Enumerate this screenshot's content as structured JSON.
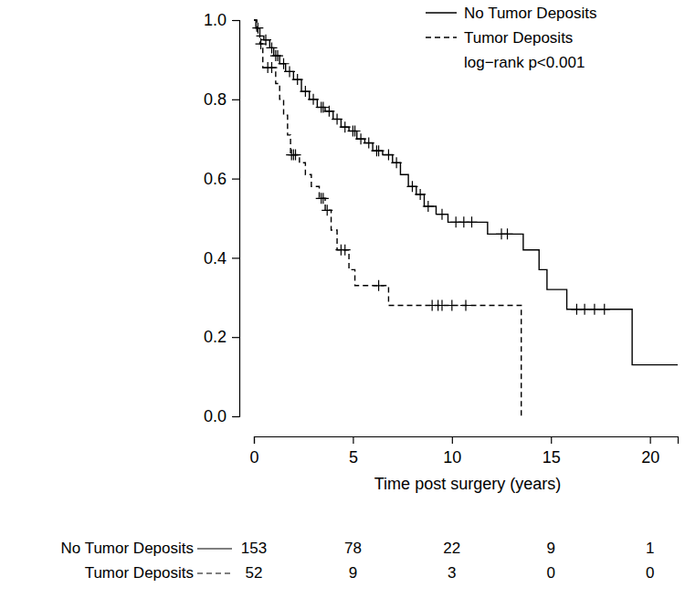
{
  "chart_data": {
    "type": "step",
    "xlabel": "Time post surgery (years)",
    "annotation": "log−rank p<0.001",
    "legend": "top-right",
    "xlim": [
      0,
      21.4
    ],
    "xticks": [
      0,
      5,
      10,
      15,
      20
    ],
    "ylim": [
      0,
      1
    ],
    "yticks": [
      {
        "value": 0,
        "label": "0.0"
      },
      {
        "value": 0.2,
        "label": "0.2"
      },
      {
        "value": 0.4,
        "label": "0.4"
      },
      {
        "value": 0.6,
        "label": "0.6"
      },
      {
        "value": 0.8,
        "label": "0.8"
      },
      {
        "value": 1,
        "label": "1.0"
      }
    ],
    "series": [
      {
        "name": "No Tumor Deposits",
        "color": "#000000",
        "line_style": "solid",
        "marker": "plus",
        "x": [
          0,
          0.1,
          0.3,
          0.5,
          0.8,
          1.0,
          1.3,
          1.6,
          2.0,
          2.4,
          2.8,
          3.2,
          3.6,
          4.0,
          4.4,
          4.8,
          5.2,
          5.6,
          6.0,
          6.5,
          7.0,
          7.4,
          7.8,
          8.2,
          8.6,
          9.2,
          9.8,
          11.8,
          13.6,
          14.4,
          14.8,
          15.8,
          19.1,
          21.4
        ],
        "values": [
          1.0,
          0.98,
          0.96,
          0.95,
          0.93,
          0.91,
          0.89,
          0.87,
          0.85,
          0.82,
          0.8,
          0.78,
          0.77,
          0.75,
          0.73,
          0.72,
          0.7,
          0.69,
          0.67,
          0.66,
          0.64,
          0.61,
          0.58,
          0.56,
          0.53,
          0.51,
          0.49,
          0.46,
          0.42,
          0.37,
          0.32,
          0.27,
          0.13,
          0.13
        ],
        "censor_x": [
          0.2,
          0.6,
          0.9,
          1.1,
          1.2,
          1.5,
          1.8,
          2.2,
          2.6,
          3.0,
          3.4,
          3.5,
          3.8,
          4.2,
          4.6,
          5.0,
          5.1,
          5.4,
          5.8,
          6.2,
          6.3,
          6.8,
          7.2,
          8.0,
          8.4,
          8.8,
          9.5,
          10.2,
          10.6,
          11.0,
          12.5,
          12.8,
          16.3,
          16.7,
          17.2,
          17.7
        ],
        "censor_values": [
          0.98,
          0.95,
          0.93,
          0.91,
          0.91,
          0.89,
          0.87,
          0.85,
          0.82,
          0.8,
          0.78,
          0.78,
          0.77,
          0.75,
          0.73,
          0.72,
          0.72,
          0.7,
          0.69,
          0.67,
          0.67,
          0.66,
          0.64,
          0.58,
          0.56,
          0.53,
          0.51,
          0.49,
          0.49,
          0.49,
          0.46,
          0.46,
          0.27,
          0.27,
          0.27,
          0.27
        ]
      },
      {
        "name": "Tumor Deposits",
        "color": "#000000",
        "line_style": "dashed",
        "marker": "plus",
        "x": [
          0,
          0.15,
          0.3,
          0.45,
          1.1,
          1.3,
          1.5,
          1.7,
          1.85,
          2.3,
          2.6,
          2.9,
          3.3,
          3.6,
          3.9,
          4.2,
          4.8,
          5.1,
          6.8,
          13.5
        ],
        "values": [
          1.0,
          0.96,
          0.94,
          0.88,
          0.84,
          0.8,
          0.76,
          0.71,
          0.66,
          0.64,
          0.61,
          0.58,
          0.55,
          0.52,
          0.47,
          0.42,
          0.37,
          0.33,
          0.28,
          0.0
        ],
        "censor_x": [
          0.35,
          0.7,
          0.9,
          1.9,
          2.0,
          2.1,
          3.4,
          3.5,
          3.7,
          4.4,
          4.6,
          6.3,
          9.0,
          9.3,
          9.5,
          10.0,
          10.7
        ],
        "censor_values": [
          0.94,
          0.88,
          0.88,
          0.66,
          0.66,
          0.66,
          0.55,
          0.55,
          0.52,
          0.42,
          0.42,
          0.33,
          0.28,
          0.28,
          0.28,
          0.28,
          0.28
        ]
      }
    ],
    "risk_table": {
      "times": [
        0,
        5,
        10,
        15,
        20
      ],
      "rows": [
        {
          "label": "No Tumor Deposits",
          "values": [
            153,
            78,
            22,
            9,
            1
          ]
        },
        {
          "label": "Tumor Deposits",
          "values": [
            52,
            9,
            3,
            0,
            0
          ]
        }
      ]
    }
  }
}
